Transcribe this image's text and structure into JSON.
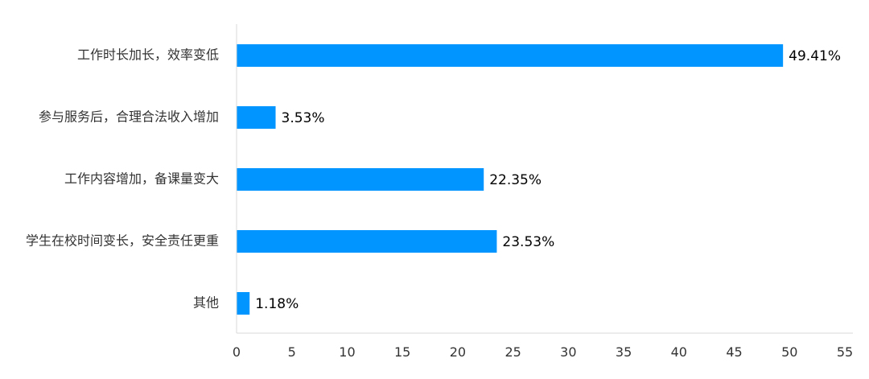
{
  "chart_data": {
    "type": "bar",
    "orientation": "horizontal",
    "categories": [
      "工作时长加长，效率变低",
      "参与服务后，合理合法收入增加",
      "工作内容增加，备课量变大",
      "学生在校时间变长，安全责任更重",
      "其他"
    ],
    "values": [
      49.41,
      3.53,
      22.35,
      23.53,
      1.18
    ],
    "value_labels": [
      "49.41%",
      "3.53%",
      "22.35%",
      "23.53%",
      "1.18%"
    ],
    "xlim": [
      0,
      55
    ],
    "x_ticks": [
      "0",
      "5",
      "10",
      "15",
      "20",
      "25",
      "30",
      "35",
      "40",
      "45",
      "50",
      "55"
    ],
    "title": "",
    "xlabel": "",
    "ylabel": "",
    "grid": false,
    "legend": "none",
    "bar_color": "#0095FF",
    "axis_color": "#D9D9D9"
  }
}
